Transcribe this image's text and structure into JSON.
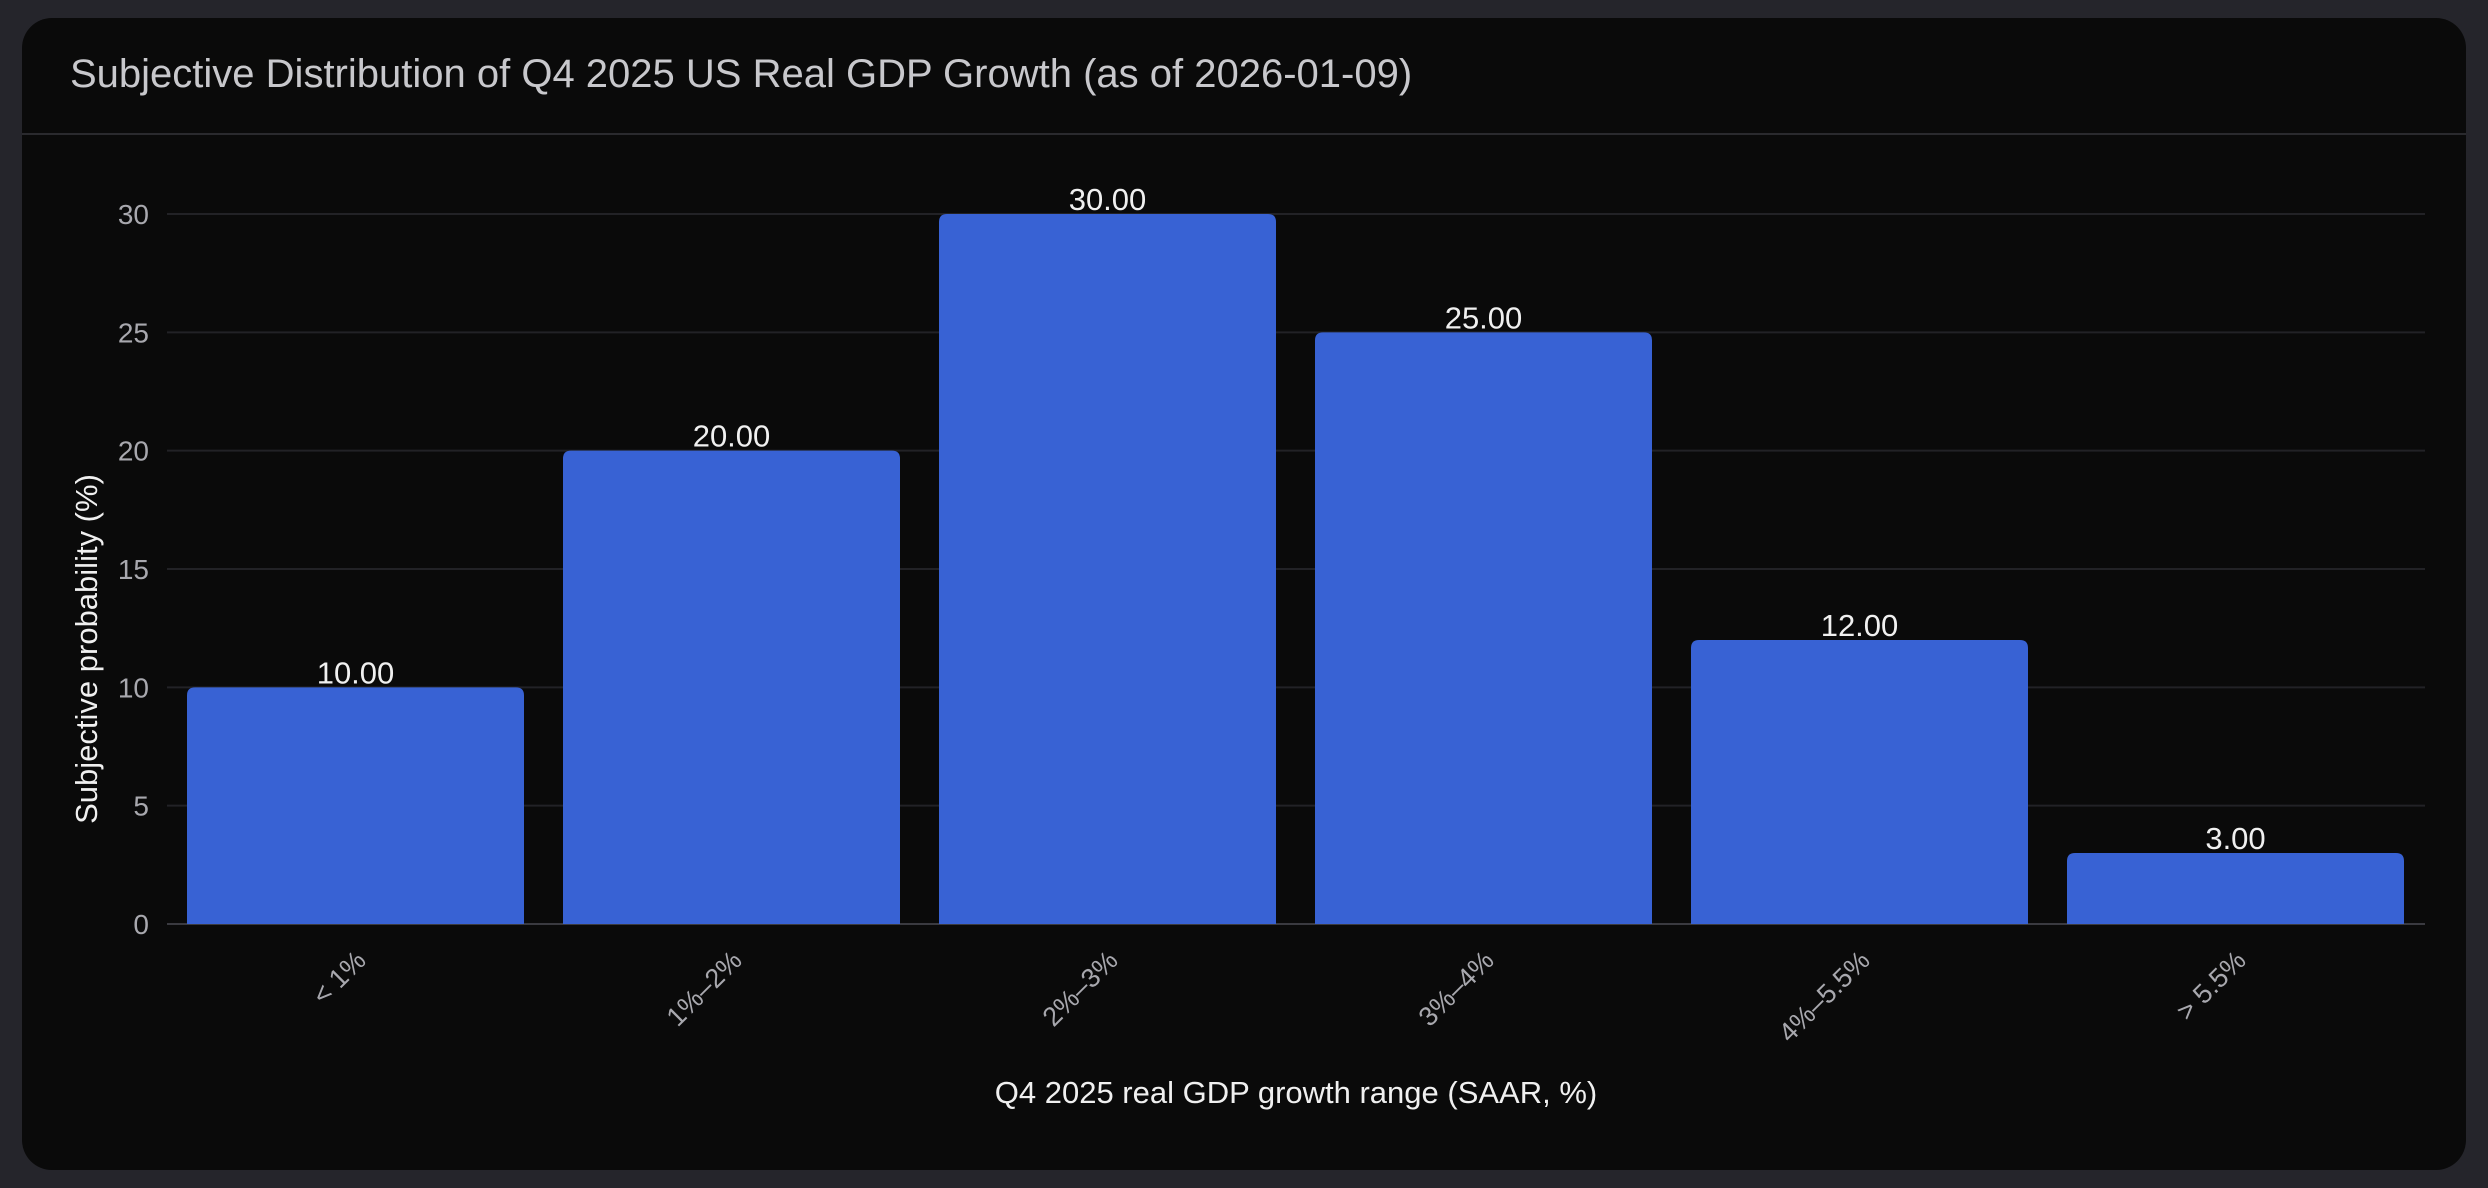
{
  "chart_data": {
    "type": "bar",
    "title": "Subjective Distribution of Q4 2025 US Real GDP Growth (as of 2026-01-09)",
    "xlabel": "Q4 2025 real GDP growth range (SAAR, %)",
    "ylabel": "Subjective probability (%)",
    "categories": [
      "< 1%",
      "1%–2%",
      "2%–3%",
      "3%–4%",
      "4%–5.5%",
      "> 5.5%"
    ],
    "values": [
      10,
      20,
      30,
      25,
      12,
      3
    ],
    "data_labels": [
      "10.00",
      "20.00",
      "30.00",
      "25.00",
      "12.00",
      "3.00"
    ],
    "ylim": [
      0,
      30
    ],
    "yticks": [
      0,
      5,
      10,
      15,
      20,
      25,
      30
    ],
    "grid": true,
    "bar_color": "#3862d4",
    "background": "#0a0a0a"
  }
}
